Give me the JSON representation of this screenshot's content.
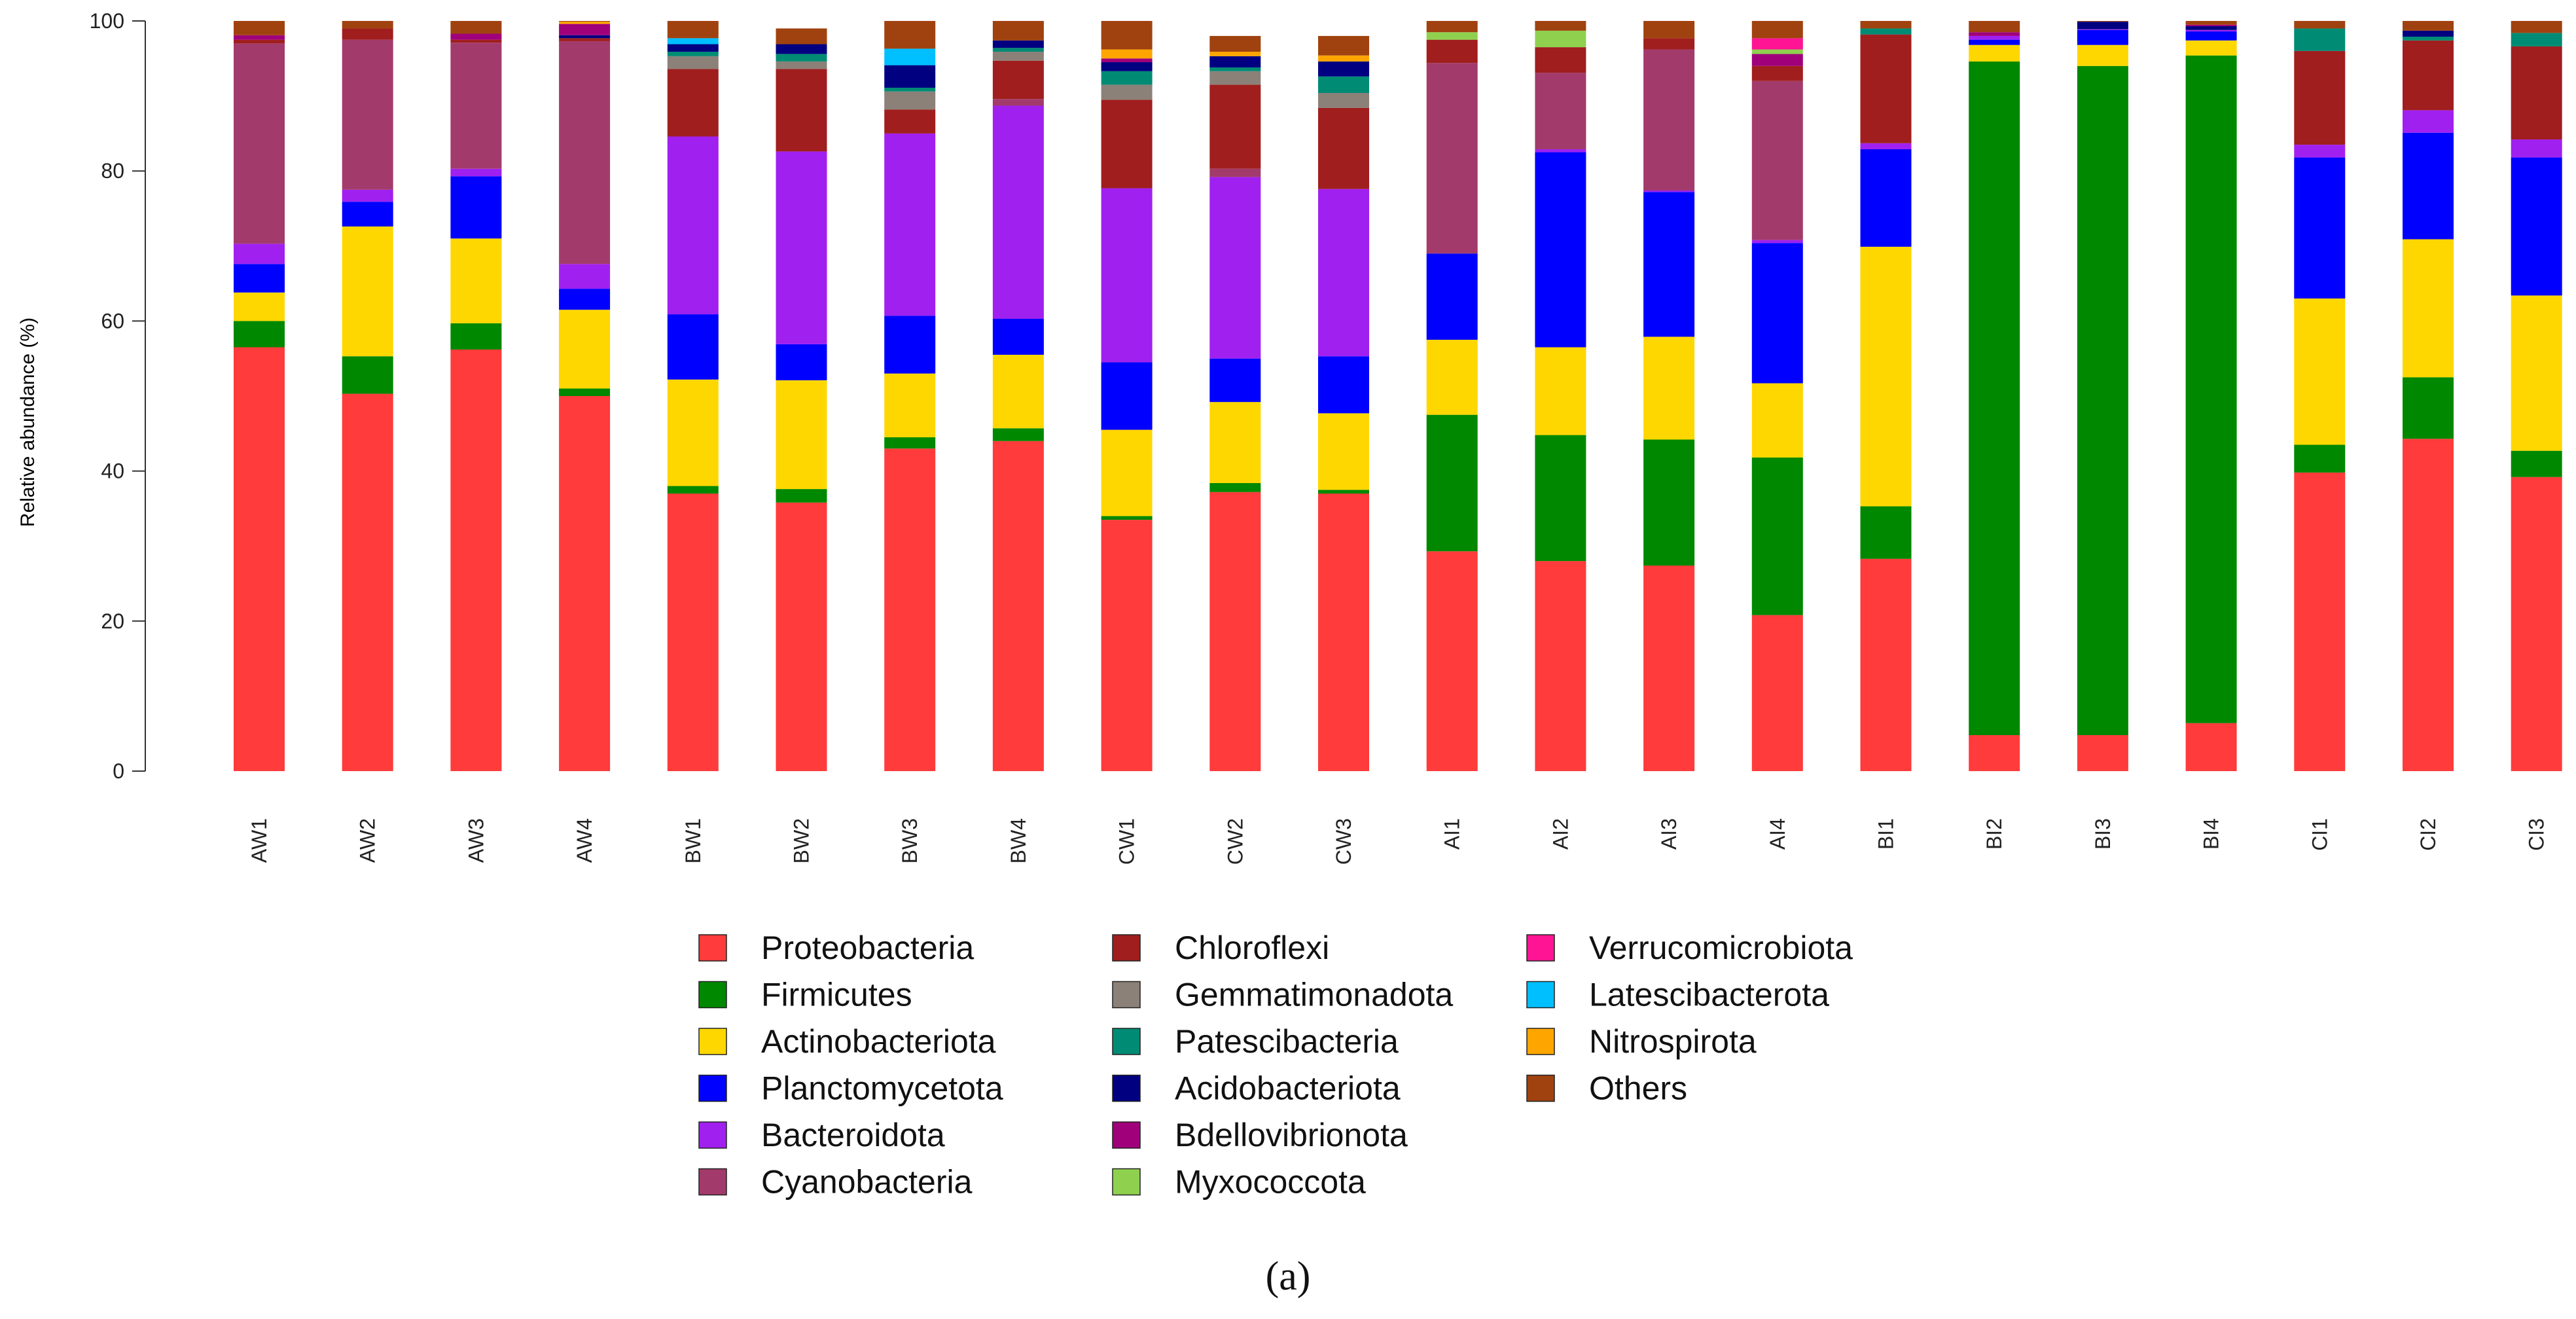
{
  "chart_data": {
    "type": "bar",
    "stacked": true,
    "title": "",
    "xlabel": "",
    "ylabel": "Relative abundance (%)",
    "ylim": [
      0,
      100
    ],
    "yticks": [
      0,
      20,
      40,
      60,
      80,
      100
    ],
    "caption": "(a)",
    "legend_position": "bottom",
    "categories": [
      "AW1",
      "AW2",
      "AW3",
      "AW4",
      "BW1",
      "BW2",
      "BW3",
      "BW4",
      "CW1",
      "CW2",
      "CW3",
      "AI1",
      "AI2",
      "AI3",
      "AI4",
      "BI1",
      "BI2",
      "BI3",
      "BI4",
      "CI1",
      "CI2",
      "CI3"
    ],
    "series": [
      {
        "name": "Proteobacteria",
        "color": "#FF3B3B",
        "values": [
          56.5,
          50.3,
          56.2,
          50.0,
          37.0,
          35.8,
          43.0,
          44.0,
          33.5,
          37.2,
          37.0,
          29.3,
          28.0,
          27.4,
          20.8,
          28.3,
          4.8,
          4.8,
          6.4,
          39.8,
          44.3,
          39.2
        ]
      },
      {
        "name": "Firmicutes",
        "color": "#008800",
        "values": [
          3.5,
          5.0,
          3.5,
          1.0,
          1.0,
          1.8,
          1.5,
          1.7,
          0.5,
          1.2,
          0.5,
          18.2,
          16.8,
          16.8,
          21.0,
          7.0,
          89.8,
          89.2,
          89.0,
          3.7,
          8.2,
          3.5
        ]
      },
      {
        "name": "Actinobacteriota",
        "color": "#FFD700",
        "values": [
          3.8,
          17.3,
          11.3,
          10.5,
          14.2,
          14.5,
          8.5,
          9.8,
          11.5,
          10.8,
          10.2,
          10.0,
          11.7,
          13.7,
          9.9,
          34.6,
          2.2,
          2.8,
          2.0,
          19.5,
          18.4,
          20.7
        ]
      },
      {
        "name": "Planctomycetota",
        "color": "#0000FF",
        "values": [
          3.8,
          3.3,
          8.3,
          2.8,
          8.7,
          4.8,
          7.7,
          4.8,
          9.0,
          5.8,
          7.6,
          11.5,
          26.0,
          19.3,
          18.7,
          13.0,
          0.7,
          2.0,
          1.2,
          18.8,
          14.2,
          18.4
        ]
      },
      {
        "name": "Bacteroidota",
        "color": "#A020F0",
        "values": [
          2.7,
          1.6,
          1.0,
          3.3,
          23.7,
          25.7,
          24.3,
          28.4,
          23.2,
          24.2,
          22.3,
          0.0,
          0.4,
          0.2,
          0.4,
          0.8,
          0.5,
          0.1,
          0.2,
          1.7,
          3.0,
          2.4
        ]
      },
      {
        "name": "Cyanobacteria",
        "color": "#A23B6B",
        "values": [
          26.7,
          20.0,
          16.8,
          29.7,
          0.0,
          0.0,
          0.0,
          0.9,
          0.0,
          1.1,
          0.0,
          25.4,
          10.2,
          18.8,
          21.2,
          0.0,
          0.0,
          0.0,
          0.0,
          0.0,
          0.0,
          0.0
        ]
      },
      {
        "name": "Chloroflexi",
        "color": "#A01E1E",
        "values": [
          0.5,
          1.5,
          0.4,
          0.4,
          9.0,
          11.0,
          3.2,
          5.1,
          11.8,
          11.2,
          10.8,
          3.1,
          3.4,
          1.5,
          2.0,
          14.5,
          0.0,
          0.0,
          0.0,
          12.5,
          9.3,
          12.4
        ]
      },
      {
        "name": "Gemmatimonadota",
        "color": "#8B8178",
        "values": [
          0.0,
          0.0,
          0.0,
          0.0,
          1.7,
          1.0,
          2.4,
          1.2,
          2.0,
          1.8,
          2.0,
          0.0,
          0.0,
          0.0,
          0.0,
          0.0,
          0.0,
          0.0,
          0.0,
          0.0,
          0.0,
          0.0
        ]
      },
      {
        "name": "Patescibacteria",
        "color": "#008B74",
        "values": [
          0.0,
          0.0,
          0.0,
          0.0,
          0.6,
          1.0,
          0.5,
          0.5,
          1.8,
          0.5,
          2.2,
          0.0,
          0.0,
          0.0,
          0.0,
          0.8,
          0.0,
          0.0,
          0.0,
          3.0,
          0.5,
          1.8
        ]
      },
      {
        "name": "Acidobacteriota",
        "color": "#000080",
        "values": [
          0.0,
          0.0,
          0.0,
          0.4,
          1.0,
          1.3,
          3.0,
          1.0,
          1.2,
          1.5,
          2.0,
          0.0,
          0.0,
          0.0,
          0.0,
          0.0,
          0.0,
          1.0,
          0.5,
          0.0,
          0.8,
          0.0
        ]
      },
      {
        "name": "Bdellovibrionota",
        "color": "#A0007A",
        "values": [
          0.6,
          0.0,
          0.8,
          1.5,
          0.0,
          0.0,
          0.0,
          0.0,
          0.5,
          0.0,
          0.0,
          0.0,
          0.0,
          0.0,
          1.6,
          0.0,
          0.5,
          0.0,
          0.2,
          0.0,
          0.0,
          0.0
        ]
      },
      {
        "name": "Myxococcota",
        "color": "#8FD14F",
        "values": [
          0.0,
          0.0,
          0.0,
          0.0,
          0.0,
          0.0,
          0.0,
          0.0,
          0.0,
          0.0,
          0.0,
          1.0,
          2.2,
          0.0,
          0.6,
          0.0,
          0.0,
          0.0,
          0.0,
          0.0,
          0.0,
          0.0
        ]
      },
      {
        "name": "Verrucomicrobiota",
        "color": "#FF1493",
        "values": [
          0.0,
          0.0,
          0.0,
          0.0,
          0.0,
          0.0,
          0.0,
          0.0,
          0.0,
          0.0,
          0.0,
          0.0,
          0.0,
          0.0,
          1.5,
          0.0,
          0.0,
          0.0,
          0.0,
          0.0,
          0.0,
          0.0
        ]
      },
      {
        "name": "Latescibacterota",
        "color": "#00BFFF",
        "values": [
          0.0,
          0.0,
          0.0,
          0.0,
          0.8,
          0.0,
          2.2,
          0.0,
          0.0,
          0.0,
          0.0,
          0.0,
          0.0,
          0.0,
          0.0,
          0.0,
          0.0,
          0.0,
          0.0,
          0.0,
          0.0,
          0.0
        ]
      },
      {
        "name": "Nitrospirota",
        "color": "#FFA500",
        "values": [
          0.0,
          0.0,
          0.0,
          0.3,
          0.0,
          0.0,
          0.0,
          0.0,
          1.2,
          0.6,
          0.8,
          0.0,
          0.0,
          0.0,
          0.0,
          0.0,
          0.0,
          0.0,
          0.0,
          0.0,
          0.0,
          0.0
        ]
      },
      {
        "name": "Others",
        "color": "#A0420F",
        "values": [
          1.9,
          1.0,
          1.7,
          0.1,
          2.3,
          2.1,
          3.7,
          2.6,
          3.8,
          2.1,
          2.6,
          1.5,
          1.3,
          2.3,
          2.3,
          1.0,
          1.5,
          0.1,
          0.5,
          1.0,
          1.3,
          1.6
        ]
      }
    ]
  }
}
